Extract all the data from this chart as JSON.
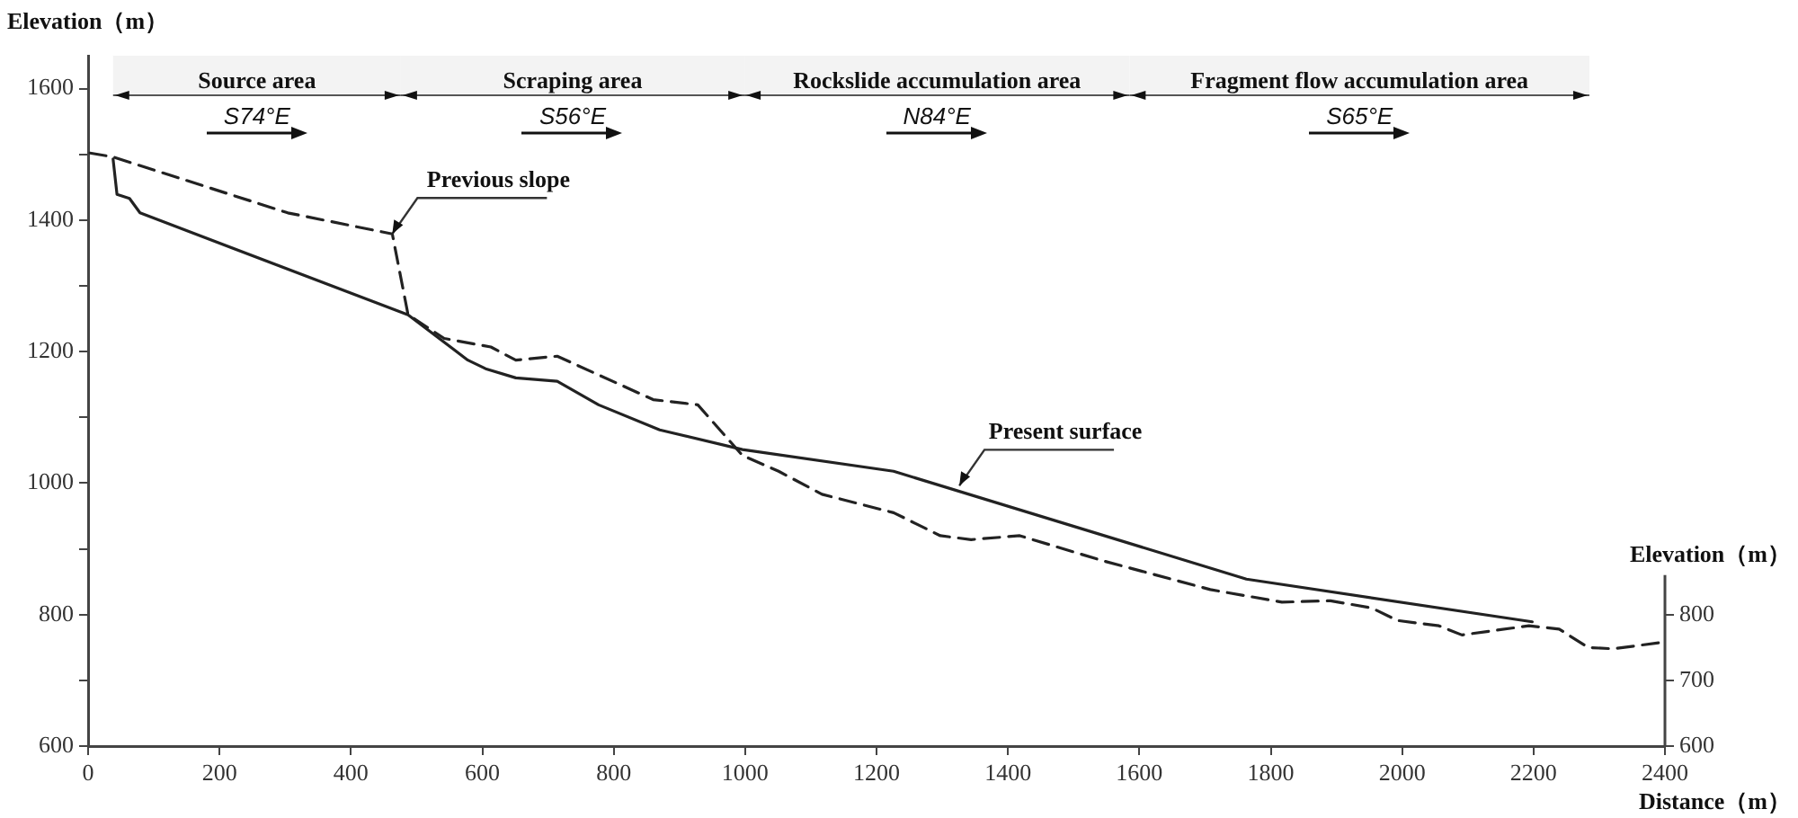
{
  "chart_data": {
    "type": "line",
    "xlabel": "Distance（m）",
    "ylabel": "Elevation（m）",
    "y2label": "Elevation（m）",
    "xlim": [
      0,
      2400
    ],
    "xticks": [
      0,
      200,
      400,
      600,
      800,
      1000,
      1200,
      1400,
      1600,
      1800,
      2000,
      2200,
      2400
    ],
    "ylim": [
      600,
      1650
    ],
    "yticks": [
      600,
      {
        "value": 700,
        "label": null
      },
      800,
      {
        "value": 900,
        "label": null
      },
      1000,
      {
        "value": 1100,
        "label": null
      },
      1200,
      {
        "value": 1300,
        "label": null
      },
      1400,
      {
        "value": 1500,
        "label": null
      },
      1600
    ],
    "y2lim": [
      600,
      1650
    ],
    "y2ticks": [
      600,
      700,
      800
    ],
    "grid": false,
    "legend": false,
    "marker": "none",
    "series": [
      {
        "color": "#222222",
        "line_style": "solid",
        "x": [
          38,
          44,
          63,
          79,
          487,
          578,
          605,
          651,
          714,
          777,
          870,
          996,
          1226,
          1763,
          2198
        ],
        "values": [
          1493,
          1439,
          1433,
          1411,
          1256,
          1187,
          1174,
          1160,
          1155,
          1119,
          1081,
          1051,
          1018,
          854,
          789
        ]
      },
      {
        "color": "#222222",
        "line_style": "dashed",
        "x": [
          3,
          38,
          304,
          463,
          487,
          542,
          613,
          651,
          714,
          860,
          928,
          996,
          1051,
          1117,
          1226,
          1297,
          1344,
          1418,
          1544,
          1708,
          1817,
          1891,
          1954,
          1993,
          2056,
          2091,
          2193,
          2239,
          2283,
          2321,
          2398
        ],
        "values": [
          1502,
          1496,
          1411,
          1379,
          1256,
          1220,
          1207,
          1187,
          1193,
          1127,
          1119,
          1042,
          1018,
          983,
          955,
          920,
          914,
          920,
          882,
          838,
          819,
          821,
          810,
          791,
          783,
          769,
          783,
          778,
          750,
          748,
          758
        ]
      }
    ],
    "annotations": [
      {
        "text": "Previous slope",
        "x": 463,
        "y": 1379
      },
      {
        "text": "Present surface",
        "x": 1326,
        "y": 996
      }
    ],
    "bands": [
      {
        "axis": "x",
        "from": 38,
        "to": 476,
        "label": "Source area\nS74°E",
        "color": "#f3f3f3"
      },
      {
        "axis": "x",
        "from": 476,
        "to": 999,
        "label": "Scraping area\nS56°E",
        "color": "#f3f3f3"
      },
      {
        "axis": "x",
        "from": 999,
        "to": 1585,
        "label": "Rockslide accumulation area\nN84°E",
        "color": "#f3f3f3"
      },
      {
        "axis": "x",
        "from": 1585,
        "to": 2285,
        "label": "Fragment flow accumulation area\nS65°E",
        "color": "#f3f3f3"
      }
    ]
  }
}
